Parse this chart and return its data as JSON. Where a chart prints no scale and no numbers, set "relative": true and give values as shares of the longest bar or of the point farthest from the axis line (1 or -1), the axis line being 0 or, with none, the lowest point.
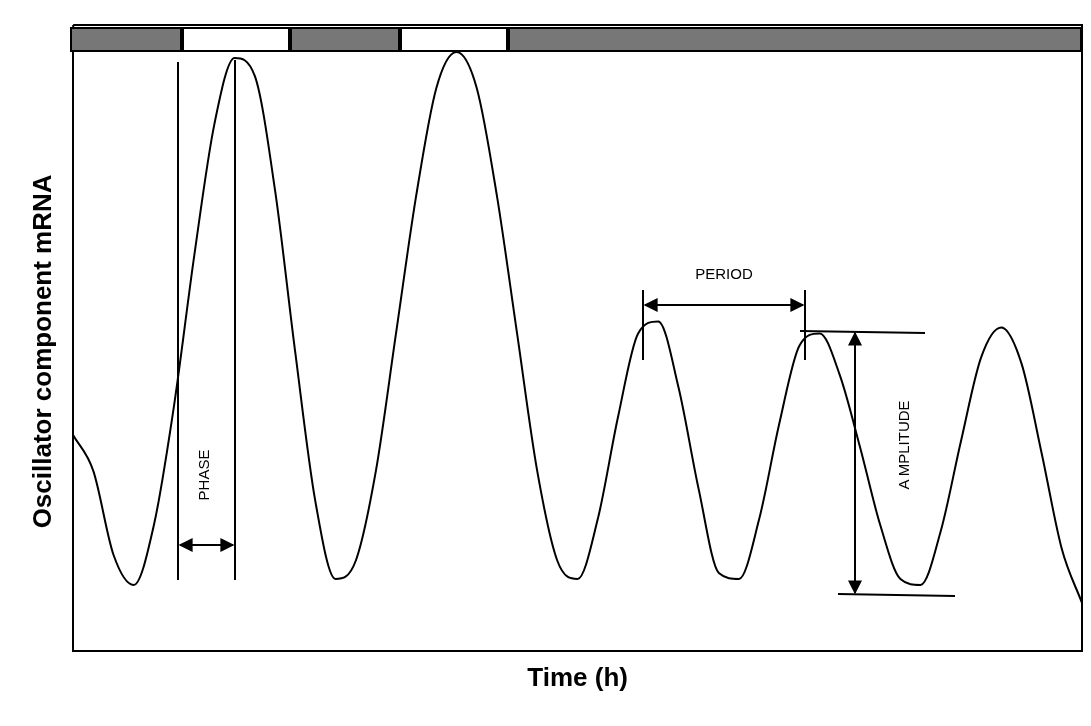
{
  "chart_data": {
    "type": "line",
    "relative": true,
    "xlabel": "Time (h)",
    "ylabel": "Oscillator component mRNA",
    "tick_labels": false,
    "grid": false,
    "legend": false,
    "marker": "none",
    "line_style": "solid",
    "categories": [
      null,
      null,
      null,
      null,
      null,
      null,
      null,
      null,
      null,
      null,
      null,
      null,
      null,
      null,
      null,
      null,
      null,
      null,
      null,
      null,
      null,
      null,
      null,
      null,
      null,
      null,
      null,
      null,
      null,
      null,
      null,
      null,
      null,
      null,
      null,
      null,
      null,
      null,
      null,
      null,
      null,
      null,
      null,
      null,
      null,
      null,
      null,
      null,
      null,
      null,
      null
    ],
    "series": [
      {
        "color": "#000000",
        "values": [
          0.36,
          0.3,
          0.16,
          0.11,
          0.21,
          0.41,
          0.66,
          0.88,
          0.99,
          0.96,
          0.77,
          0.5,
          0.25,
          0.12,
          0.15,
          0.3,
          0.53,
          0.76,
          0.94,
          1,
          0.94,
          0.76,
          0.53,
          0.3,
          0.15,
          0.12,
          0.22,
          0.39,
          0.53,
          0.55,
          0.44,
          0.27,
          0.13,
          0.12,
          0.22,
          0.38,
          0.51,
          0.53,
          0.46,
          0.34,
          0.21,
          0.12,
          0.11,
          0.2,
          0.35,
          0.49,
          0.54,
          0.48,
          0.33,
          0.17,
          0.08
        ]
      }
    ],
    "annotations": [
      "PHASE",
      "PERIOD",
      "A MPLITUDE"
    ]
  }
}
